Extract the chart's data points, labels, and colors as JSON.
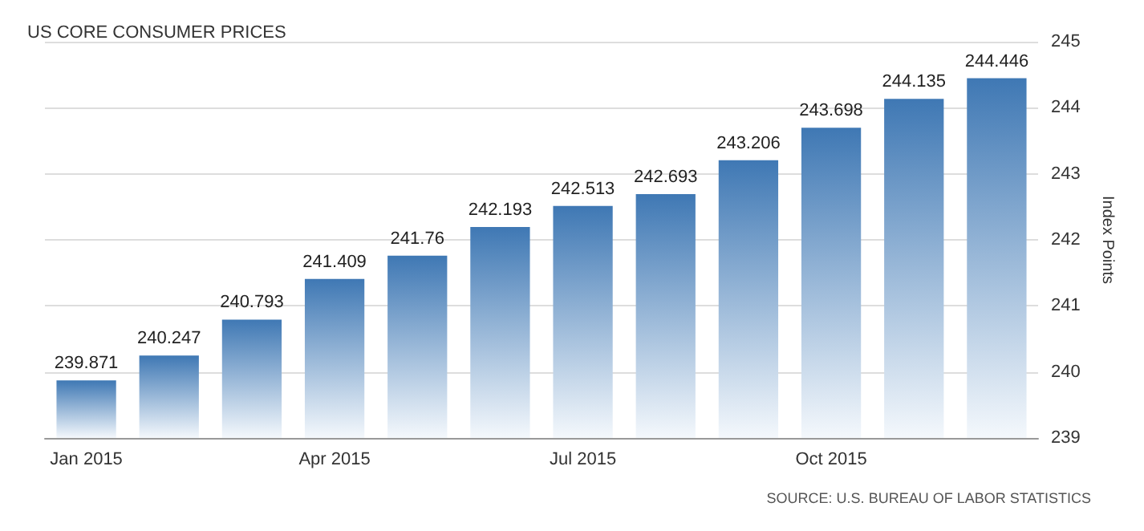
{
  "chart_data": {
    "type": "bar",
    "title": "US CORE CONSUMER PRICES",
    "ylabel": "Index Points",
    "categories": [
      "Jan 2015",
      null,
      null,
      "Apr 2015",
      null,
      null,
      "Jul 2015",
      null,
      null,
      "Oct 2015",
      null,
      null
    ],
    "values": [
      239.871,
      240.247,
      240.793,
      241.409,
      241.76,
      242.193,
      242.513,
      242.693,
      243.206,
      243.698,
      244.135,
      244.446
    ],
    "color": "#3f78b4",
    "ylim": [
      239,
      245
    ],
    "yticks": [
      239,
      240,
      241,
      242,
      243,
      244,
      245
    ],
    "grid": "y",
    "data_labels": true,
    "annotations": [
      "SOURCE: U.S. BUREAU OF LABOR STATISTICS"
    ]
  }
}
